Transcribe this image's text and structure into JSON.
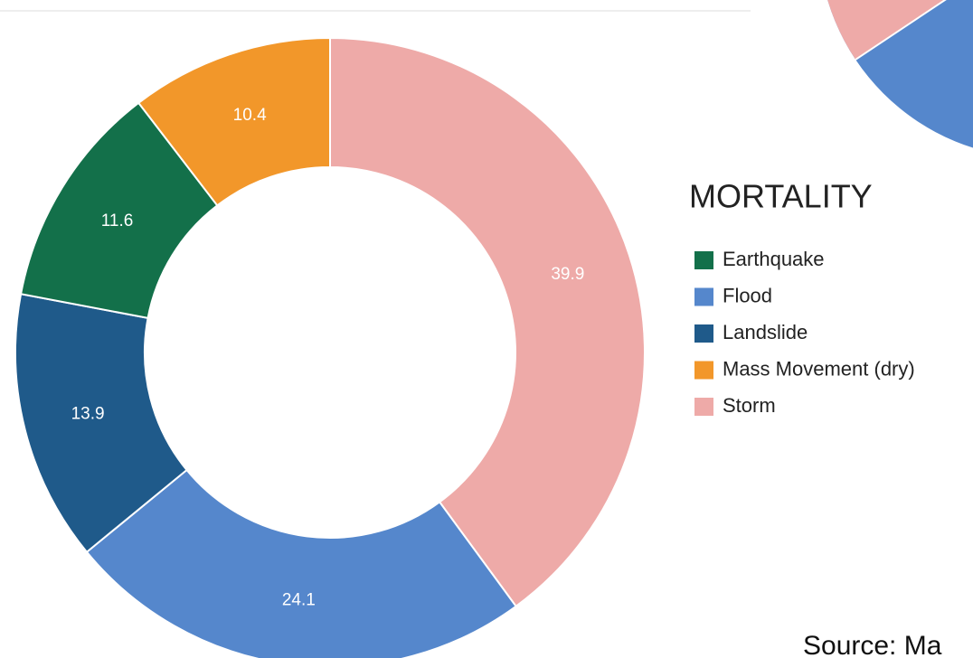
{
  "chart_data": {
    "type": "donut",
    "title": "MORTALITY",
    "categories": [
      "Earthquake",
      "Flood",
      "Landslide",
      "Mass Movement (dry)",
      "Storm"
    ],
    "values": [
      11.6,
      24.1,
      13.9,
      10.4,
      39.9
    ],
    "colors": [
      "#13704a",
      "#5587cc",
      "#1f5a8a",
      "#f2972a",
      "#eeaaa8"
    ],
    "legend": "right"
  },
  "source": "Source: Ma"
}
